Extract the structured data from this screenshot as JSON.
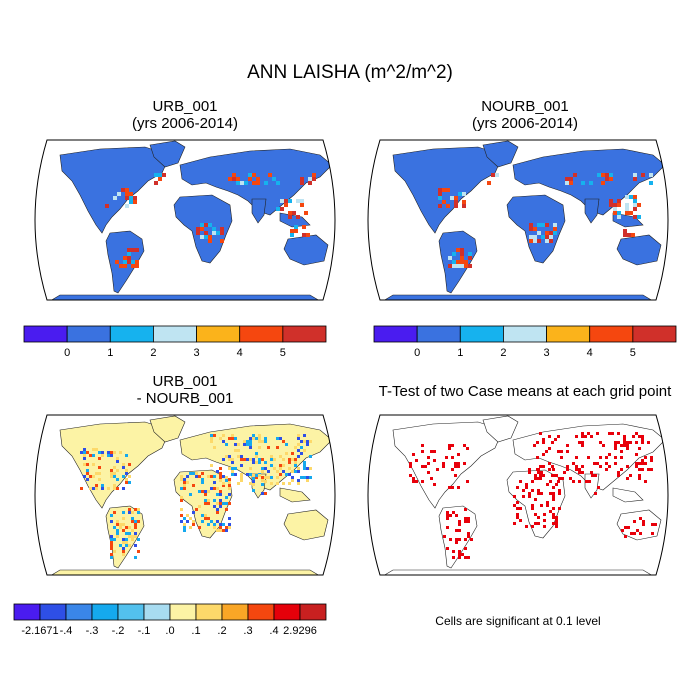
{
  "title": "ANN LAISHA (m^2/m^2)",
  "panels": [
    {
      "title_line1": "URB_001",
      "title_line2": "(yrs 2006-2014)"
    },
    {
      "title_line1": "NOURB_001",
      "title_line2": "(yrs 2006-2014)"
    },
    {
      "title_line1": "URB_001",
      "title_line2": "- NOURB_001"
    },
    {
      "title_line1": "T-Test of two Case means at each grid point",
      "title_line2": ""
    }
  ],
  "footnote": "Cells are significant at 0.1 level",
  "colors": {
    "ocean": "#ffffff",
    "coast": "#222222",
    "significant": "#e8000b"
  },
  "chart_data": [
    {
      "type": "heatmap",
      "title": "URB_001",
      "subtitle": "(yrs 2006-2014)",
      "projection": "Robinson",
      "variable": "LAISHA",
      "units": "m^2/m^2",
      "legend": {
        "position": "bottom",
        "tick_labels": [
          "0",
          "1",
          "2",
          "3",
          "4",
          "5"
        ],
        "colors": [
          "#4a1cf0",
          "#3a72e0",
          "#16b2ee",
          "#bfe4f2",
          "#fbb31b",
          "#f5470f",
          "#d0302a"
        ]
      }
    },
    {
      "type": "heatmap",
      "title": "NOURB_001",
      "subtitle": "(yrs 2006-2014)",
      "projection": "Robinson",
      "variable": "LAISHA",
      "units": "m^2/m^2",
      "legend": {
        "position": "bottom",
        "tick_labels": [
          "0",
          "1",
          "2",
          "3",
          "4",
          "5"
        ],
        "colors": [
          "#4a1cf0",
          "#3a72e0",
          "#16b2ee",
          "#bfe4f2",
          "#fbb31b",
          "#f5470f",
          "#d0302a"
        ]
      }
    },
    {
      "type": "heatmap",
      "title": "URB_001",
      "subtitle": "- NOURB_001",
      "projection": "Robinson",
      "legend": {
        "position": "bottom",
        "tick_labels": [
          "-2.1671",
          "-.4",
          "-.3",
          "-.2",
          "-.1",
          ".0",
          ".1",
          ".2",
          ".3",
          ".4",
          "2.9296"
        ],
        "colors": [
          "#4a1cf0",
          "#2e4fe6",
          "#3a86e8",
          "#15a9ee",
          "#53c1ee",
          "#a8dcf1",
          "#fcf3a5",
          "#fdd96a",
          "#f9a626",
          "#f5470f",
          "#e5000a",
          "#c82020"
        ]
      }
    },
    {
      "type": "heatmap",
      "title": "T-Test of two Case means at each grid point",
      "projection": "Robinson",
      "significance_level": 0.1,
      "marker_color": "#e8000b"
    }
  ]
}
